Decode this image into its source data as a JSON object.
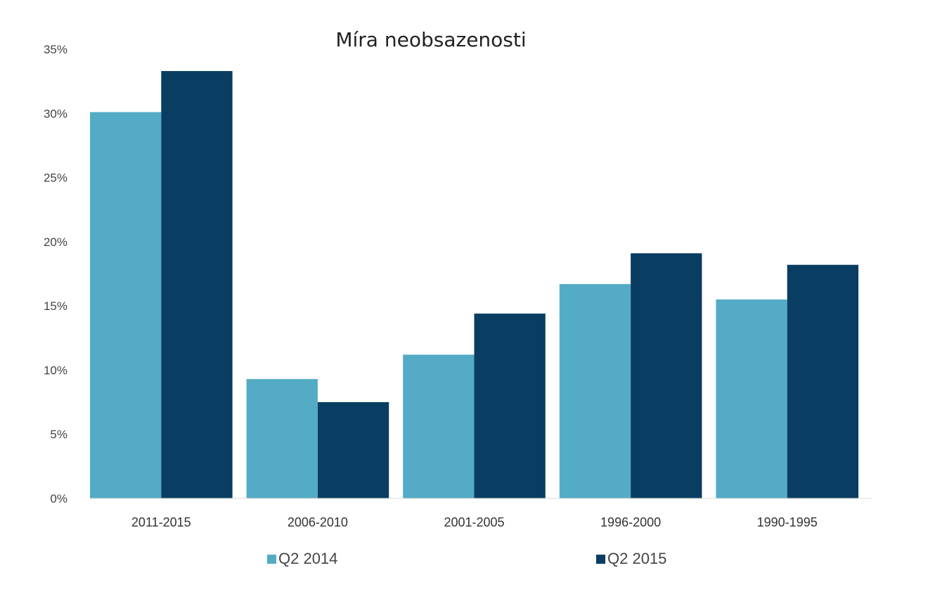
{
  "colors": {
    "series_1": "#54abc5",
    "series_2": "#093d62",
    "axis": "#d9d9d9"
  },
  "chart_data": {
    "type": "bar",
    "title": "Míra neobsazenosti",
    "xlabel": "",
    "ylabel": "",
    "categories": [
      "2011-2015",
      "2006-2010",
      "2001-2005",
      "1996-2000",
      "1990-1995"
    ],
    "series": [
      {
        "name": "Q2 2014",
        "values": [
          30.1,
          9.3,
          11.2,
          16.7,
          15.5
        ]
      },
      {
        "name": "Q2 2015",
        "values": [
          33.3,
          7.5,
          14.4,
          19.1,
          18.2
        ]
      }
    ],
    "ylim": [
      0,
      35
    ],
    "yticks": [
      0,
      5,
      10,
      15,
      20,
      25,
      30,
      35
    ],
    "ytick_labels": [
      "0%",
      "5%",
      "10%",
      "15%",
      "20%",
      "25%",
      "30%",
      "35%"
    ],
    "grid": false,
    "legend_position": "bottom"
  }
}
